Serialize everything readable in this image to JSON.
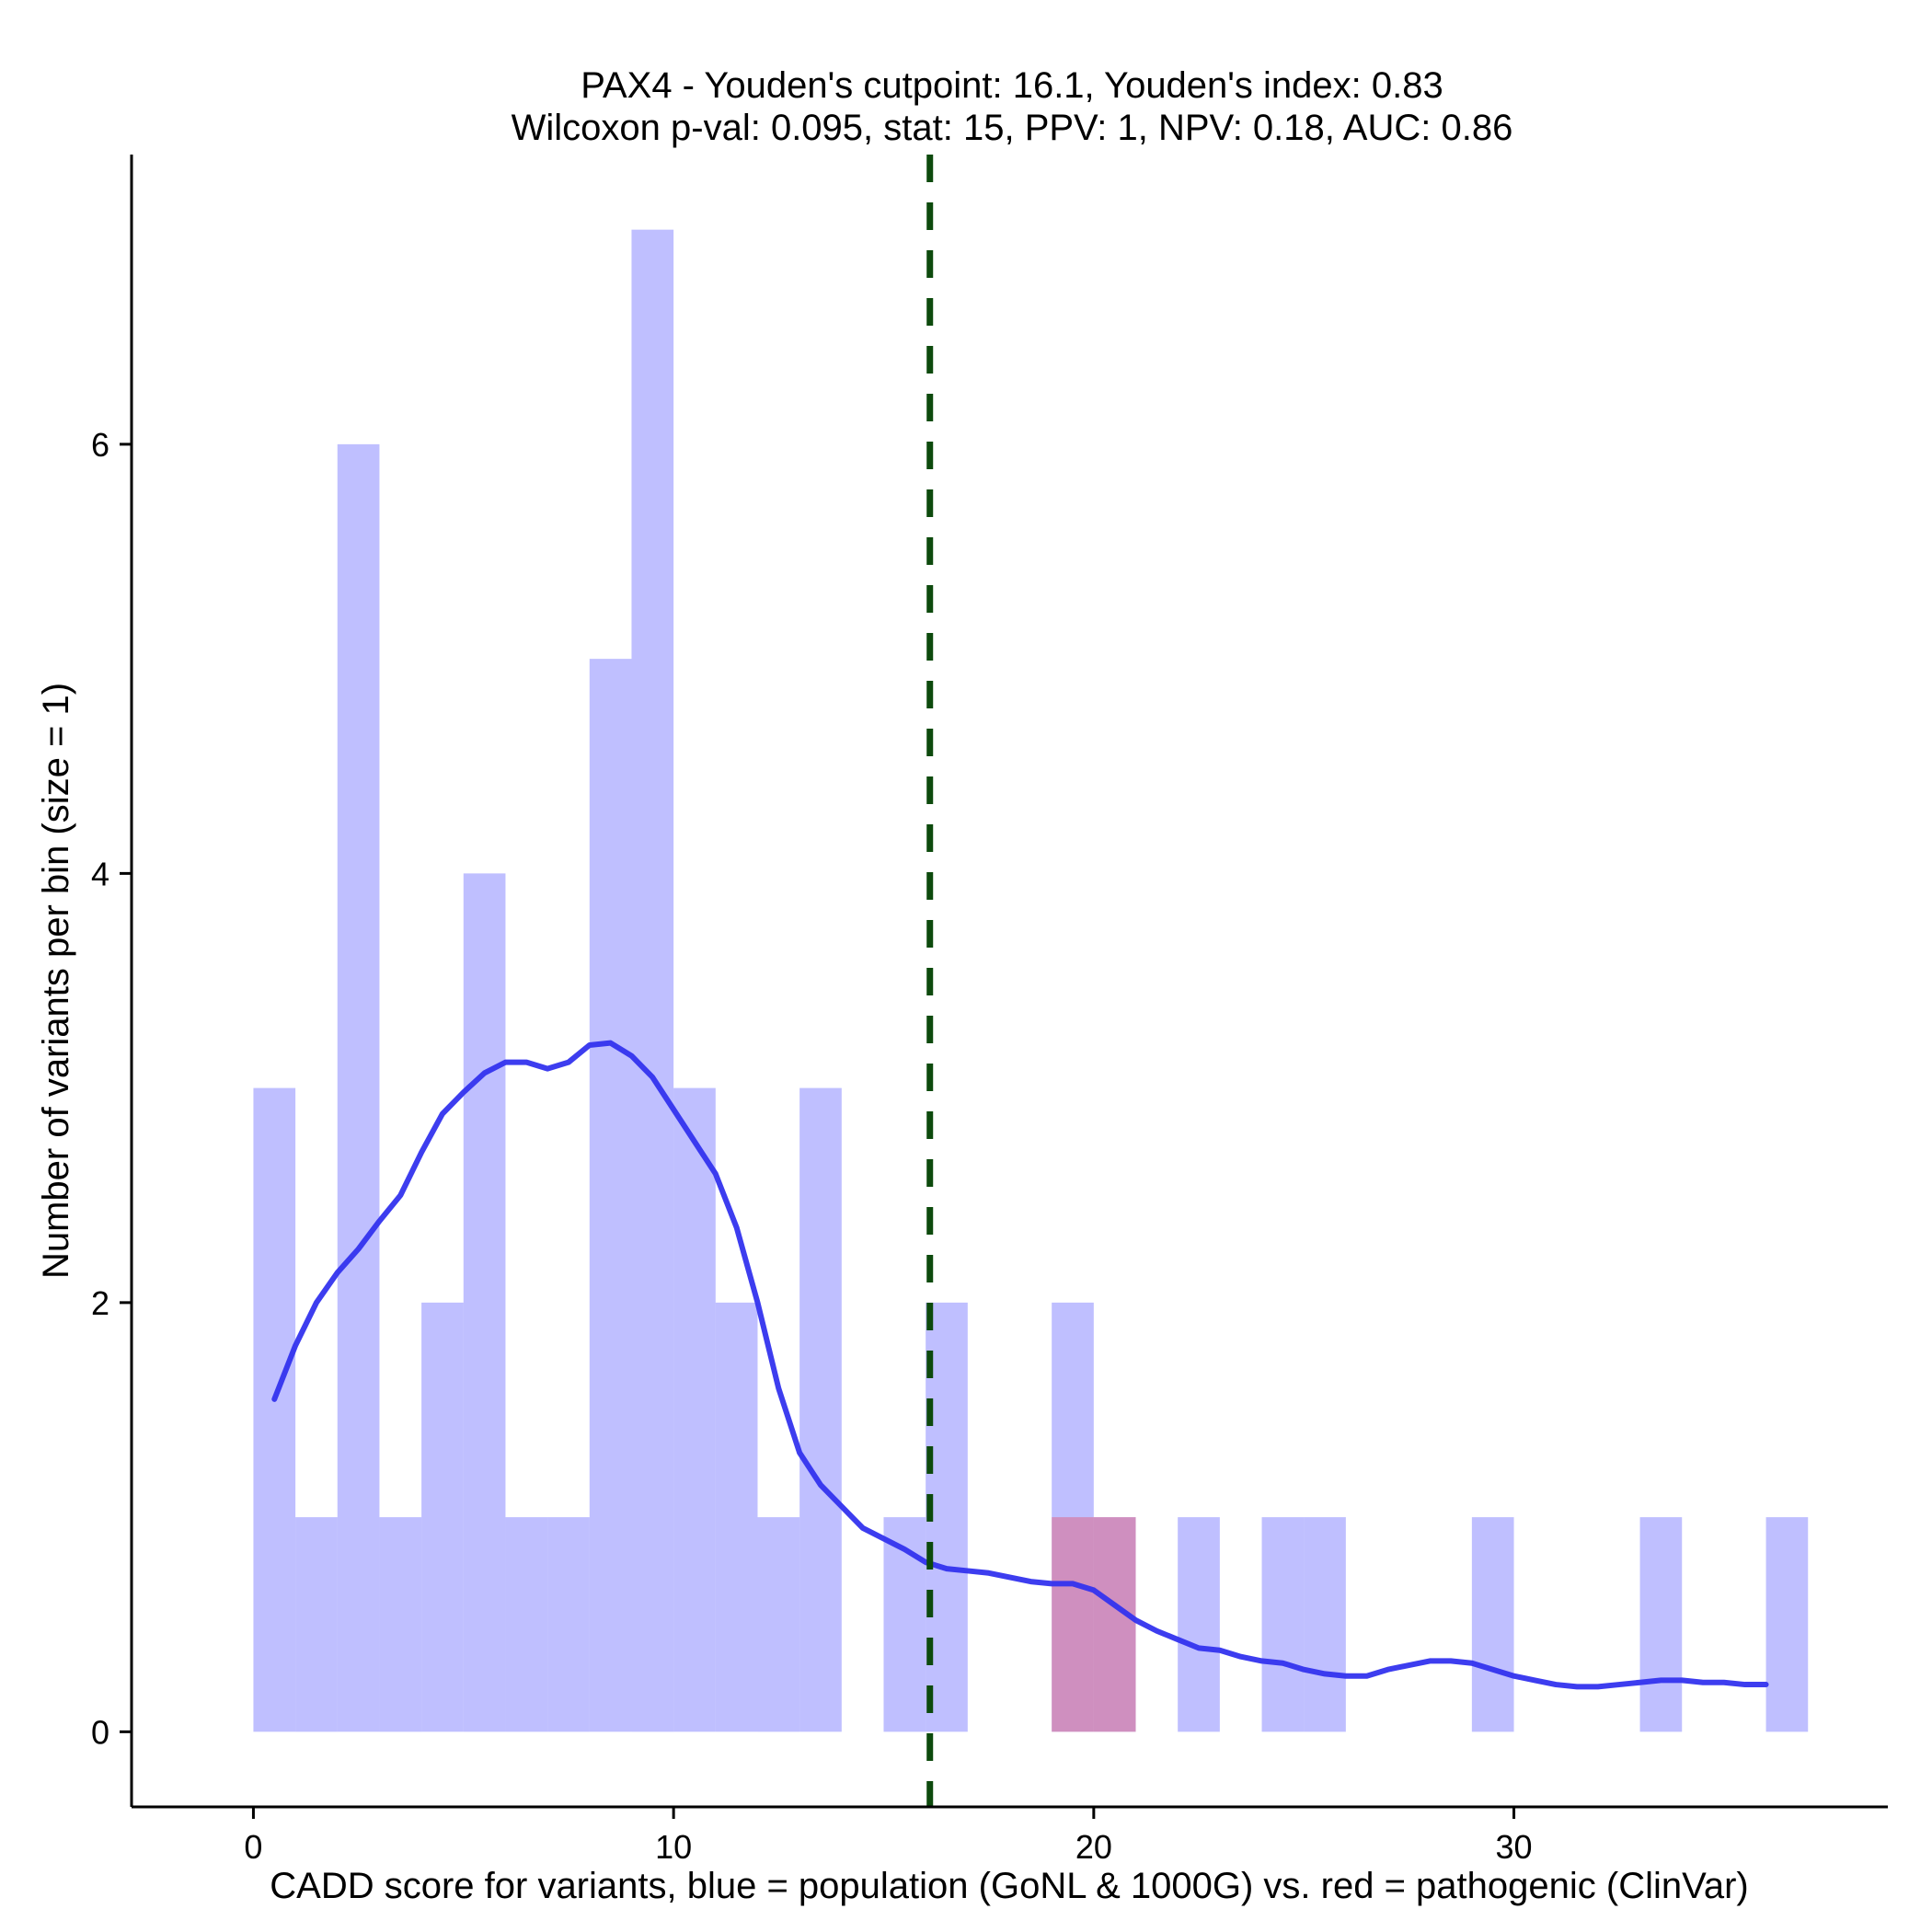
{
  "chart_data": {
    "type": "histogram",
    "title": "PAX4 - Youden's cutpoint: 16.1, Youden's index: 0.83",
    "subtitle": "Wilcoxon p-val: 0.095, stat: 15, PPV: 1, NPV: 0.18, AUC: 0.86",
    "xlabel": "CADD score for variants, blue = population (GoNL & 1000G) vs. red = pathogenic (ClinVar)",
    "ylabel": "Number of variants per bin (size = 1)",
    "xlim": [
      -2.9,
      38.9
    ],
    "ylim": [
      -0.35,
      7.35
    ],
    "x_ticks": [
      0,
      10,
      20,
      30
    ],
    "x_tick_labels": [
      "0",
      "10",
      "20",
      "30"
    ],
    "y_ticks": [
      0,
      2,
      4,
      6
    ],
    "y_tick_labels": [
      "0",
      "2",
      "4",
      "6"
    ],
    "bin_size": 1,
    "series": [
      {
        "name": "population (GoNL & 1000G)",
        "color": "#8080ff",
        "opacity": 0.5,
        "bins": [
          {
            "x0": 0,
            "x1": 1,
            "count": 3
          },
          {
            "x0": 1,
            "x1": 2,
            "count": 1
          },
          {
            "x0": 2,
            "x1": 3,
            "count": 6
          },
          {
            "x0": 3,
            "x1": 4,
            "count": 1
          },
          {
            "x0": 4,
            "x1": 5,
            "count": 2
          },
          {
            "x0": 5,
            "x1": 6,
            "count": 4
          },
          {
            "x0": 6,
            "x1": 7,
            "count": 1
          },
          {
            "x0": 7,
            "x1": 8,
            "count": 1
          },
          {
            "x0": 8,
            "x1": 9,
            "count": 5
          },
          {
            "x0": 9,
            "x1": 10,
            "count": 7
          },
          {
            "x0": 10,
            "x1": 11,
            "count": 3
          },
          {
            "x0": 11,
            "x1": 12,
            "count": 2
          },
          {
            "x0": 12,
            "x1": 13,
            "count": 1
          },
          {
            "x0": 13,
            "x1": 14,
            "count": 3
          },
          {
            "x0": 15,
            "x1": 16,
            "count": 1
          },
          {
            "x0": 16,
            "x1": 17,
            "count": 2
          },
          {
            "x0": 19,
            "x1": 20,
            "count": 2
          },
          {
            "x0": 20,
            "x1": 21,
            "count": 1
          },
          {
            "x0": 22,
            "x1": 23,
            "count": 1
          },
          {
            "x0": 24,
            "x1": 25,
            "count": 1
          },
          {
            "x0": 25,
            "x1": 26,
            "count": 1
          },
          {
            "x0": 29,
            "x1": 30,
            "count": 1
          },
          {
            "x0": 33,
            "x1": 34,
            "count": 1
          },
          {
            "x0": 36,
            "x1": 37,
            "count": 1
          }
        ]
      },
      {
        "name": "pathogenic (ClinVar)",
        "color": "#ff0000",
        "opacity": 0.25,
        "bins": [
          {
            "x0": 19,
            "x1": 20,
            "count": 1
          },
          {
            "x0": 20,
            "x1": 21,
            "count": 1
          }
        ]
      }
    ],
    "density": {
      "name": "population density (scaled)",
      "color": "#3333ee",
      "x": [
        0.5,
        1.0,
        1.5,
        2.0,
        2.5,
        3.0,
        3.5,
        4.0,
        4.5,
        5.0,
        5.5,
        6.0,
        6.5,
        7.0,
        7.5,
        8.0,
        8.5,
        9.0,
        9.5,
        10.0,
        10.5,
        11.0,
        11.5,
        12.0,
        12.5,
        13.0,
        13.5,
        14.0,
        14.5,
        15.0,
        15.5,
        16.0,
        16.5,
        17.0,
        17.5,
        18.0,
        18.5,
        19.0,
        19.5,
        20.0,
        20.5,
        21.0,
        21.5,
        22.0,
        22.5,
        23.0,
        23.5,
        24.0,
        24.5,
        25.0,
        25.5,
        26.0,
        26.5,
        27.0,
        27.5,
        28.0,
        28.5,
        29.0,
        29.5,
        30.0,
        30.5,
        31.0,
        31.5,
        32.0,
        32.5,
        33.0,
        33.5,
        34.0,
        34.5,
        35.0,
        35.5,
        36.0
      ],
      "y": [
        1.55,
        1.8,
        2.0,
        2.14,
        2.25,
        2.38,
        2.5,
        2.7,
        2.88,
        2.98,
        3.07,
        3.12,
        3.12,
        3.09,
        3.12,
        3.2,
        3.21,
        3.15,
        3.05,
        2.9,
        2.75,
        2.6,
        2.35,
        2.0,
        1.6,
        1.3,
        1.15,
        1.05,
        0.95,
        0.9,
        0.85,
        0.79,
        0.76,
        0.75,
        0.74,
        0.72,
        0.7,
        0.69,
        0.69,
        0.66,
        0.59,
        0.52,
        0.47,
        0.43,
        0.39,
        0.38,
        0.35,
        0.33,
        0.32,
        0.29,
        0.27,
        0.26,
        0.26,
        0.29,
        0.31,
        0.33,
        0.33,
        0.32,
        0.29,
        0.26,
        0.24,
        0.22,
        0.21,
        0.21,
        0.22,
        0.23,
        0.24,
        0.24,
        0.23,
        0.23,
        0.22,
        0.22
      ]
    },
    "cutpoint": {
      "x": 16.1,
      "label": "Youden's cutpoint",
      "color": "#0d4a0d"
    }
  }
}
